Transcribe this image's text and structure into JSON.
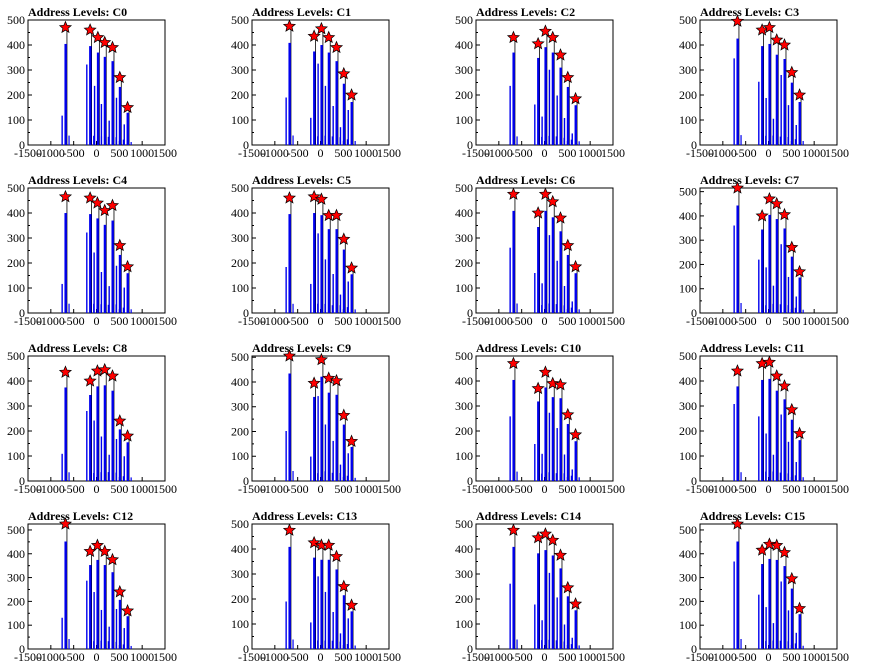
{
  "colors": {
    "bar": "#0000ee",
    "peak": "#ff0000",
    "axis": "#000000"
  },
  "chart_data": [
    {
      "type": "bar",
      "title": "Address Levels: C0",
      "xlim": [
        -1500,
        1500
      ],
      "ylim": [
        0,
        500
      ],
      "xticks": [
        -1500,
        -1000,
        -500,
        0,
        500,
        1000,
        1500
      ],
      "yticks": [
        0,
        100,
        200,
        300,
        400,
        500
      ],
      "peaks": [
        [
          -680,
          470
        ],
        [
          -140,
          460
        ],
        [
          30,
          430
        ],
        [
          180,
          410
        ],
        [
          350,
          390
        ],
        [
          510,
          270
        ],
        [
          680,
          150
        ]
      ]
    },
    {
      "type": "bar",
      "title": "Address Levels: C1",
      "xlim": [
        -1500,
        1500
      ],
      "ylim": [
        0,
        500
      ],
      "xticks": [
        -1500,
        -1000,
        -500,
        0,
        500,
        1000,
        1500
      ],
      "yticks": [
        0,
        100,
        200,
        300,
        400,
        500
      ],
      "peaks": [
        [
          -680,
          475
        ],
        [
          -140,
          435
        ],
        [
          20,
          465
        ],
        [
          180,
          430
        ],
        [
          350,
          390
        ],
        [
          510,
          285
        ],
        [
          680,
          200
        ]
      ]
    },
    {
      "type": "bar",
      "title": "Address Levels: C2",
      "xlim": [
        -1500,
        1500
      ],
      "ylim": [
        0,
        500
      ],
      "xticks": [
        -1500,
        -1000,
        -500,
        0,
        500,
        1000,
        1500
      ],
      "yticks": [
        0,
        100,
        200,
        300,
        400,
        500
      ],
      "peaks": [
        [
          -680,
          430
        ],
        [
          -140,
          405
        ],
        [
          20,
          455
        ],
        [
          180,
          430
        ],
        [
          350,
          360
        ],
        [
          510,
          270
        ],
        [
          680,
          185
        ]
      ]
    },
    {
      "type": "bar",
      "title": "Address Levels: C3",
      "xlim": [
        -1500,
        1500
      ],
      "ylim": [
        0,
        500
      ],
      "xticks": [
        -1500,
        -1000,
        -500,
        0,
        500,
        1000,
        1500
      ],
      "yticks": [
        0,
        100,
        200,
        300,
        400,
        500
      ],
      "peaks": [
        [
          -680,
          495
        ],
        [
          -140,
          460
        ],
        [
          20,
          470
        ],
        [
          180,
          420
        ],
        [
          350,
          400
        ],
        [
          510,
          290
        ],
        [
          680,
          200
        ]
      ]
    },
    {
      "type": "bar",
      "title": "Address Levels: C4",
      "xlim": [
        -1500,
        1500
      ],
      "ylim": [
        0,
        500
      ],
      "xticks": [
        -1500,
        -1000,
        -500,
        0,
        500,
        1000,
        1500
      ],
      "yticks": [
        0,
        100,
        200,
        300,
        400,
        500
      ],
      "peaks": [
        [
          -680,
          465
        ],
        [
          -140,
          460
        ],
        [
          20,
          440
        ],
        [
          180,
          410
        ],
        [
          350,
          430
        ],
        [
          510,
          270
        ],
        [
          680,
          185
        ]
      ]
    },
    {
      "type": "bar",
      "title": "Address Levels: C5",
      "xlim": [
        -1500,
        1500
      ],
      "ylim": [
        0,
        500
      ],
      "xticks": [
        -1500,
        -1000,
        -500,
        0,
        500,
        1000,
        1500
      ],
      "yticks": [
        0,
        100,
        200,
        300,
        400,
        500
      ],
      "peaks": [
        [
          -680,
          460
        ],
        [
          -140,
          465
        ],
        [
          20,
          455
        ],
        [
          180,
          390
        ],
        [
          350,
          390
        ],
        [
          510,
          295
        ],
        [
          680,
          180
        ]
      ]
    },
    {
      "type": "bar",
      "title": "Address Levels: C6",
      "xlim": [
        -1500,
        1500
      ],
      "ylim": [
        0,
        500
      ],
      "xticks": [
        -1500,
        -1000,
        -500,
        0,
        500,
        1000,
        1500
      ],
      "yticks": [
        0,
        100,
        200,
        300,
        400,
        500
      ],
      "peaks": [
        [
          -680,
          475
        ],
        [
          -140,
          400
        ],
        [
          20,
          475
        ],
        [
          180,
          445
        ],
        [
          350,
          380
        ],
        [
          510,
          270
        ],
        [
          680,
          185
        ]
      ]
    },
    {
      "type": "bar",
      "title": "Address Levels: C7",
      "xlim": [
        -1500,
        1500
      ],
      "ylim": [
        0,
        500
      ],
      "xticks": [
        -1500,
        -1000,
        -500,
        0,
        500,
        1000,
        1500
      ],
      "yticks": [
        0,
        100,
        200,
        300,
        400,
        500
      ],
      "peaks": [
        [
          -680,
          515
        ],
        [
          -140,
          400
        ],
        [
          20,
          470
        ],
        [
          180,
          450
        ],
        [
          350,
          405
        ],
        [
          510,
          270
        ],
        [
          680,
          170
        ]
      ]
    },
    {
      "type": "bar",
      "title": "Address Levels: C8",
      "xlim": [
        -1500,
        1500
      ],
      "ylim": [
        0,
        500
      ],
      "xticks": [
        -1500,
        -1000,
        -500,
        0,
        500,
        1000,
        1500
      ],
      "yticks": [
        0,
        100,
        200,
        300,
        400,
        500
      ],
      "peaks": [
        [
          -680,
          435
        ],
        [
          -140,
          400
        ],
        [
          20,
          440
        ],
        [
          180,
          445
        ],
        [
          350,
          420
        ],
        [
          510,
          240
        ],
        [
          680,
          180
        ]
      ]
    },
    {
      "type": "bar",
      "title": "Address Levels: C9",
      "xlim": [
        -1500,
        1500
      ],
      "ylim": [
        0,
        500
      ],
      "xticks": [
        -1500,
        -1000,
        -500,
        0,
        500,
        1000,
        1500
      ],
      "yticks": [
        0,
        100,
        200,
        300,
        400,
        500
      ],
      "peaks": [
        [
          -680,
          505
        ],
        [
          -140,
          395
        ],
        [
          20,
          490
        ],
        [
          180,
          415
        ],
        [
          350,
          405
        ],
        [
          510,
          265
        ],
        [
          680,
          160
        ]
      ]
    },
    {
      "type": "bar",
      "title": "Address Levels: C10",
      "xlim": [
        -1500,
        1500
      ],
      "ylim": [
        0,
        500
      ],
      "xticks": [
        -1500,
        -1000,
        -500,
        0,
        500,
        1000,
        1500
      ],
      "yticks": [
        0,
        100,
        200,
        300,
        400,
        500
      ],
      "peaks": [
        [
          -680,
          470
        ],
        [
          -140,
          370
        ],
        [
          20,
          435
        ],
        [
          180,
          390
        ],
        [
          350,
          385
        ],
        [
          510,
          265
        ],
        [
          680,
          185
        ]
      ]
    },
    {
      "type": "bar",
      "title": "Address Levels: C11",
      "xlim": [
        -1500,
        1500
      ],
      "ylim": [
        0,
        500
      ],
      "xticks": [
        -1500,
        -1000,
        -500,
        0,
        500,
        1000,
        1500
      ],
      "yticks": [
        0,
        100,
        200,
        300,
        400,
        500
      ],
      "peaks": [
        [
          -680,
          440
        ],
        [
          -140,
          470
        ],
        [
          20,
          475
        ],
        [
          180,
          420
        ],
        [
          350,
          380
        ],
        [
          510,
          285
        ],
        [
          680,
          190
        ]
      ]
    },
    {
      "type": "bar",
      "title": "Address Levels: C12",
      "xlim": [
        -1500,
        1500
      ],
      "ylim": [
        0,
        500
      ],
      "xticks": [
        -1500,
        -1000,
        -500,
        0,
        500,
        1000,
        1500
      ],
      "yticks": [
        0,
        100,
        200,
        300,
        400,
        500
      ],
      "peaks": [
        [
          -680,
          525
        ],
        [
          -140,
          410
        ],
        [
          20,
          435
        ],
        [
          180,
          410
        ],
        [
          350,
          375
        ],
        [
          510,
          240
        ],
        [
          680,
          160
        ]
      ]
    },
    {
      "type": "bar",
      "title": "Address Levels: C13",
      "xlim": [
        -1500,
        1500
      ],
      "ylim": [
        0,
        500
      ],
      "xticks": [
        -1500,
        -1000,
        -500,
        0,
        500,
        1000,
        1500
      ],
      "yticks": [
        0,
        100,
        200,
        300,
        400,
        500
      ],
      "peaks": [
        [
          -680,
          475
        ],
        [
          -140,
          425
        ],
        [
          20,
          415
        ],
        [
          180,
          415
        ],
        [
          350,
          370
        ],
        [
          510,
          250
        ],
        [
          680,
          175
        ]
      ]
    },
    {
      "type": "bar",
      "title": "Address Levels: C14",
      "xlim": [
        -1500,
        1500
      ],
      "ylim": [
        0,
        500
      ],
      "xticks": [
        -1500,
        -1000,
        -500,
        0,
        500,
        1000,
        1500
      ],
      "yticks": [
        0,
        100,
        200,
        300,
        400,
        500
      ],
      "peaks": [
        [
          -680,
          475
        ],
        [
          -140,
          445
        ],
        [
          20,
          460
        ],
        [
          180,
          435
        ],
        [
          350,
          375
        ],
        [
          510,
          245
        ],
        [
          680,
          180
        ]
      ]
    },
    {
      "type": "bar",
      "title": "Address Levels: C15",
      "xlim": [
        -1500,
        1500
      ],
      "ylim": [
        0,
        500
      ],
      "xticks": [
        -1500,
        -1000,
        -500,
        0,
        500,
        1000,
        1500
      ],
      "yticks": [
        0,
        100,
        200,
        300,
        400,
        500
      ],
      "peaks": [
        [
          -680,
          525
        ],
        [
          -140,
          415
        ],
        [
          20,
          440
        ],
        [
          180,
          435
        ],
        [
          350,
          405
        ],
        [
          510,
          295
        ],
        [
          680,
          170
        ]
      ]
    }
  ]
}
